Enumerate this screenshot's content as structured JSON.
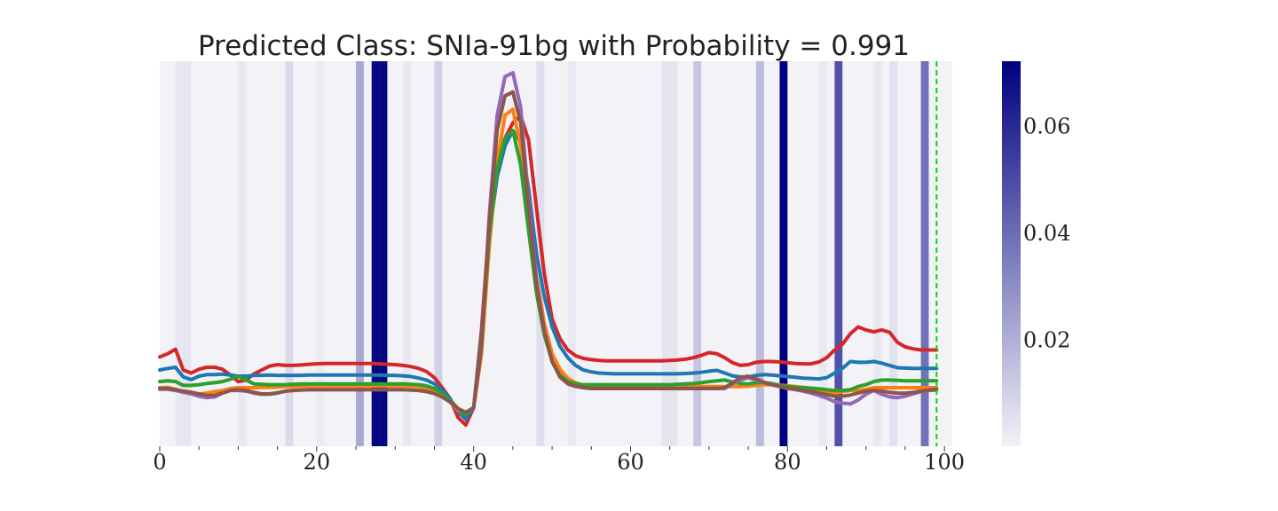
{
  "chart_data": {
    "type": "line",
    "title": "Predicted Class: SNIa-91bg with Probability = 0.991",
    "xlabel": "",
    "ylabel": "",
    "xlim": [
      0,
      101
    ],
    "ylim": [
      0,
      1
    ],
    "grid": false,
    "x_ticks": [
      "0",
      "20",
      "40",
      "60",
      "80",
      "100"
    ],
    "y_ticks": [],
    "marker_line": {
      "x": 99,
      "color": "#00dd00",
      "style": "dashed"
    },
    "attention": {
      "colorbar_ticks": [
        "0.02",
        "0.04",
        "0.06"
      ],
      "vmin": 0.0,
      "vmax": 0.072,
      "cmap": [
        "#f2f2f7",
        "#000080"
      ],
      "bands": [
        {
          "x": 2,
          "value": 0.003
        },
        {
          "x": 3,
          "value": 0.004
        },
        {
          "x": 10,
          "value": 0.003
        },
        {
          "x": 16,
          "value": 0.007
        },
        {
          "x": 20,
          "value": 0.002
        },
        {
          "x": 25,
          "value": 0.022
        },
        {
          "x": 27,
          "value": 0.07
        },
        {
          "x": 28,
          "value": 0.07
        },
        {
          "x": 31,
          "value": 0.003
        },
        {
          "x": 35,
          "value": 0.01
        },
        {
          "x": 48,
          "value": 0.006
        },
        {
          "x": 52,
          "value": 0.003
        },
        {
          "x": 64,
          "value": 0.004
        },
        {
          "x": 65,
          "value": 0.004
        },
        {
          "x": 68,
          "value": 0.013
        },
        {
          "x": 76,
          "value": 0.016
        },
        {
          "x": 79,
          "value": 0.072
        },
        {
          "x": 84,
          "value": 0.003
        },
        {
          "x": 86,
          "value": 0.048
        },
        {
          "x": 91,
          "value": 0.003
        },
        {
          "x": 93,
          "value": 0.005
        },
        {
          "x": 97,
          "value": 0.038
        }
      ]
    },
    "x": [
      0,
      1,
      2,
      3,
      4,
      5,
      6,
      7,
      8,
      9,
      10,
      11,
      12,
      13,
      14,
      15,
      16,
      17,
      18,
      19,
      20,
      21,
      22,
      23,
      24,
      25,
      26,
      27,
      28,
      29,
      30,
      31,
      32,
      33,
      34,
      35,
      36,
      37,
      38,
      39,
      40,
      41,
      42,
      43,
      44,
      45,
      46,
      47,
      48,
      49,
      50,
      51,
      52,
      53,
      54,
      55,
      56,
      57,
      58,
      59,
      60,
      61,
      62,
      63,
      64,
      65,
      66,
      67,
      68,
      69,
      70,
      71,
      72,
      73,
      74,
      75,
      76,
      77,
      78,
      79,
      80,
      81,
      82,
      83,
      84,
      85,
      86,
      87,
      88,
      89,
      90,
      91,
      92,
      93,
      94,
      95,
      96,
      97,
      98,
      99
    ],
    "series": [
      {
        "color": "#d62728",
        "values": [
          0.232,
          0.24,
          0.252,
          0.198,
          0.19,
          0.2,
          0.205,
          0.205,
          0.2,
          0.185,
          0.168,
          0.172,
          0.188,
          0.198,
          0.208,
          0.212,
          0.21,
          0.21,
          0.211,
          0.213,
          0.214,
          0.215,
          0.215,
          0.215,
          0.215,
          0.215,
          0.215,
          0.215,
          0.214,
          0.213,
          0.212,
          0.21,
          0.207,
          0.202,
          0.194,
          0.178,
          0.152,
          0.124,
          0.075,
          0.055,
          0.1,
          0.3,
          0.58,
          0.72,
          0.8,
          0.84,
          0.858,
          0.795,
          0.62,
          0.45,
          0.33,
          0.28,
          0.25,
          0.235,
          0.228,
          0.225,
          0.223,
          0.222,
          0.222,
          0.222,
          0.222,
          0.222,
          0.222,
          0.222,
          0.222,
          0.223,
          0.224,
          0.226,
          0.23,
          0.236,
          0.243,
          0.24,
          0.23,
          0.217,
          0.21,
          0.212,
          0.218,
          0.22,
          0.22,
          0.219,
          0.217,
          0.215,
          0.214,
          0.214,
          0.219,
          0.23,
          0.25,
          0.265,
          0.292,
          0.31,
          0.302,
          0.297,
          0.302,
          0.296,
          0.27,
          0.258,
          0.253,
          0.25,
          0.25,
          0.25
        ]
      },
      {
        "color": "#1f77b4",
        "values": [
          0.198,
          0.202,
          0.205,
          0.18,
          0.173,
          0.182,
          0.186,
          0.186,
          0.187,
          0.185,
          0.182,
          0.182,
          0.184,
          0.184,
          0.185,
          0.184,
          0.184,
          0.184,
          0.184,
          0.185,
          0.185,
          0.185,
          0.185,
          0.185,
          0.185,
          0.185,
          0.185,
          0.185,
          0.185,
          0.184,
          0.184,
          0.183,
          0.181,
          0.177,
          0.172,
          0.162,
          0.146,
          0.124,
          0.09,
          0.07,
          0.1,
          0.28,
          0.55,
          0.7,
          0.78,
          0.82,
          0.79,
          0.67,
          0.5,
          0.39,
          0.31,
          0.26,
          0.23,
          0.21,
          0.198,
          0.193,
          0.19,
          0.189,
          0.188,
          0.188,
          0.188,
          0.188,
          0.188,
          0.188,
          0.188,
          0.188,
          0.188,
          0.189,
          0.19,
          0.192,
          0.195,
          0.197,
          0.19,
          0.183,
          0.18,
          0.18,
          0.184,
          0.186,
          0.185,
          0.183,
          0.181,
          0.179,
          0.177,
          0.176,
          0.175,
          0.178,
          0.19,
          0.202,
          0.22,
          0.218,
          0.218,
          0.22,
          0.216,
          0.21,
          0.204,
          0.203,
          0.202,
          0.202,
          0.202,
          0.202
        ]
      },
      {
        "color": "#ff7f0e",
        "values": [
          0.152,
          0.153,
          0.148,
          0.14,
          0.14,
          0.135,
          0.138,
          0.142,
          0.145,
          0.15,
          0.152,
          0.152,
          0.152,
          0.153,
          0.153,
          0.154,
          0.155,
          0.155,
          0.156,
          0.157,
          0.157,
          0.157,
          0.157,
          0.157,
          0.157,
          0.157,
          0.157,
          0.157,
          0.157,
          0.157,
          0.157,
          0.157,
          0.156,
          0.155,
          0.15,
          0.142,
          0.13,
          0.115,
          0.094,
          0.082,
          0.1,
          0.24,
          0.52,
          0.74,
          0.86,
          0.875,
          0.78,
          0.6,
          0.44,
          0.32,
          0.24,
          0.2,
          0.176,
          0.165,
          0.158,
          0.156,
          0.156,
          0.155,
          0.155,
          0.155,
          0.155,
          0.155,
          0.155,
          0.155,
          0.155,
          0.155,
          0.155,
          0.155,
          0.155,
          0.155,
          0.155,
          0.155,
          0.155,
          0.155,
          0.155,
          0.156,
          0.158,
          0.16,
          0.16,
          0.159,
          0.157,
          0.155,
          0.153,
          0.15,
          0.145,
          0.14,
          0.138,
          0.142,
          0.145,
          0.145,
          0.148,
          0.152,
          0.152,
          0.152,
          0.152,
          0.152,
          0.152,
          0.152,
          0.152,
          0.152
        ]
      },
      {
        "color": "#2ca02c",
        "values": [
          0.168,
          0.17,
          0.168,
          0.158,
          0.158,
          0.16,
          0.163,
          0.165,
          0.168,
          0.174,
          0.182,
          0.172,
          0.162,
          0.161,
          0.16,
          0.16,
          0.16,
          0.161,
          0.162,
          0.162,
          0.162,
          0.162,
          0.162,
          0.162,
          0.162,
          0.162,
          0.162,
          0.162,
          0.162,
          0.162,
          0.162,
          0.162,
          0.161,
          0.16,
          0.157,
          0.15,
          0.138,
          0.12,
          0.098,
          0.082,
          0.1,
          0.27,
          0.55,
          0.72,
          0.8,
          0.82,
          0.73,
          0.56,
          0.4,
          0.29,
          0.22,
          0.185,
          0.168,
          0.162,
          0.16,
          0.16,
          0.16,
          0.16,
          0.16,
          0.16,
          0.16,
          0.16,
          0.16,
          0.16,
          0.16,
          0.16,
          0.161,
          0.162,
          0.163,
          0.165,
          0.168,
          0.17,
          0.172,
          0.167,
          0.163,
          0.162,
          0.165,
          0.166,
          0.163,
          0.158,
          0.155,
          0.153,
          0.152,
          0.151,
          0.149,
          0.147,
          0.145,
          0.145,
          0.147,
          0.155,
          0.16,
          0.168,
          0.172,
          0.172,
          0.171,
          0.17,
          0.17,
          0.17,
          0.17,
          0.17
        ]
      },
      {
        "color": "#9467bd",
        "values": [
          0.148,
          0.148,
          0.145,
          0.14,
          0.136,
          0.13,
          0.126,
          0.128,
          0.138,
          0.145,
          0.145,
          0.143,
          0.138,
          0.135,
          0.135,
          0.138,
          0.143,
          0.145,
          0.146,
          0.147,
          0.147,
          0.147,
          0.147,
          0.147,
          0.147,
          0.147,
          0.147,
          0.147,
          0.147,
          0.147,
          0.147,
          0.147,
          0.146,
          0.145,
          0.142,
          0.137,
          0.128,
          0.115,
          0.098,
          0.088,
          0.1,
          0.26,
          0.6,
          0.86,
          0.96,
          0.97,
          0.88,
          0.64,
          0.43,
          0.3,
          0.22,
          0.18,
          0.162,
          0.155,
          0.152,
          0.15,
          0.15,
          0.15,
          0.15,
          0.15,
          0.15,
          0.15,
          0.15,
          0.15,
          0.15,
          0.15,
          0.15,
          0.15,
          0.15,
          0.15,
          0.15,
          0.15,
          0.15,
          0.162,
          0.172,
          0.178,
          0.172,
          0.165,
          0.16,
          0.155,
          0.15,
          0.147,
          0.143,
          0.138,
          0.132,
          0.125,
          0.116,
          0.112,
          0.11,
          0.12,
          0.135,
          0.145,
          0.135,
          0.128,
          0.126,
          0.13,
          0.136,
          0.142,
          0.145,
          0.146
        ]
      },
      {
        "color": "#8c564b",
        "values": [
          0.15,
          0.15,
          0.147,
          0.143,
          0.14,
          0.136,
          0.132,
          0.132,
          0.138,
          0.145,
          0.147,
          0.145,
          0.14,
          0.136,
          0.136,
          0.139,
          0.143,
          0.145,
          0.146,
          0.147,
          0.147,
          0.147,
          0.147,
          0.147,
          0.147,
          0.147,
          0.147,
          0.147,
          0.147,
          0.147,
          0.147,
          0.147,
          0.146,
          0.145,
          0.142,
          0.137,
          0.128,
          0.115,
          0.098,
          0.088,
          0.1,
          0.26,
          0.58,
          0.82,
          0.91,
          0.92,
          0.84,
          0.62,
          0.42,
          0.3,
          0.22,
          0.18,
          0.163,
          0.156,
          0.152,
          0.15,
          0.15,
          0.15,
          0.15,
          0.15,
          0.15,
          0.15,
          0.15,
          0.15,
          0.15,
          0.15,
          0.15,
          0.15,
          0.15,
          0.15,
          0.15,
          0.15,
          0.152,
          0.165,
          0.178,
          0.182,
          0.175,
          0.166,
          0.16,
          0.155,
          0.151,
          0.148,
          0.145,
          0.142,
          0.138,
          0.134,
          0.13,
          0.13,
          0.133,
          0.138,
          0.143,
          0.145,
          0.143,
          0.14,
          0.138,
          0.138,
          0.14,
          0.143,
          0.146,
          0.148
        ]
      }
    ]
  }
}
